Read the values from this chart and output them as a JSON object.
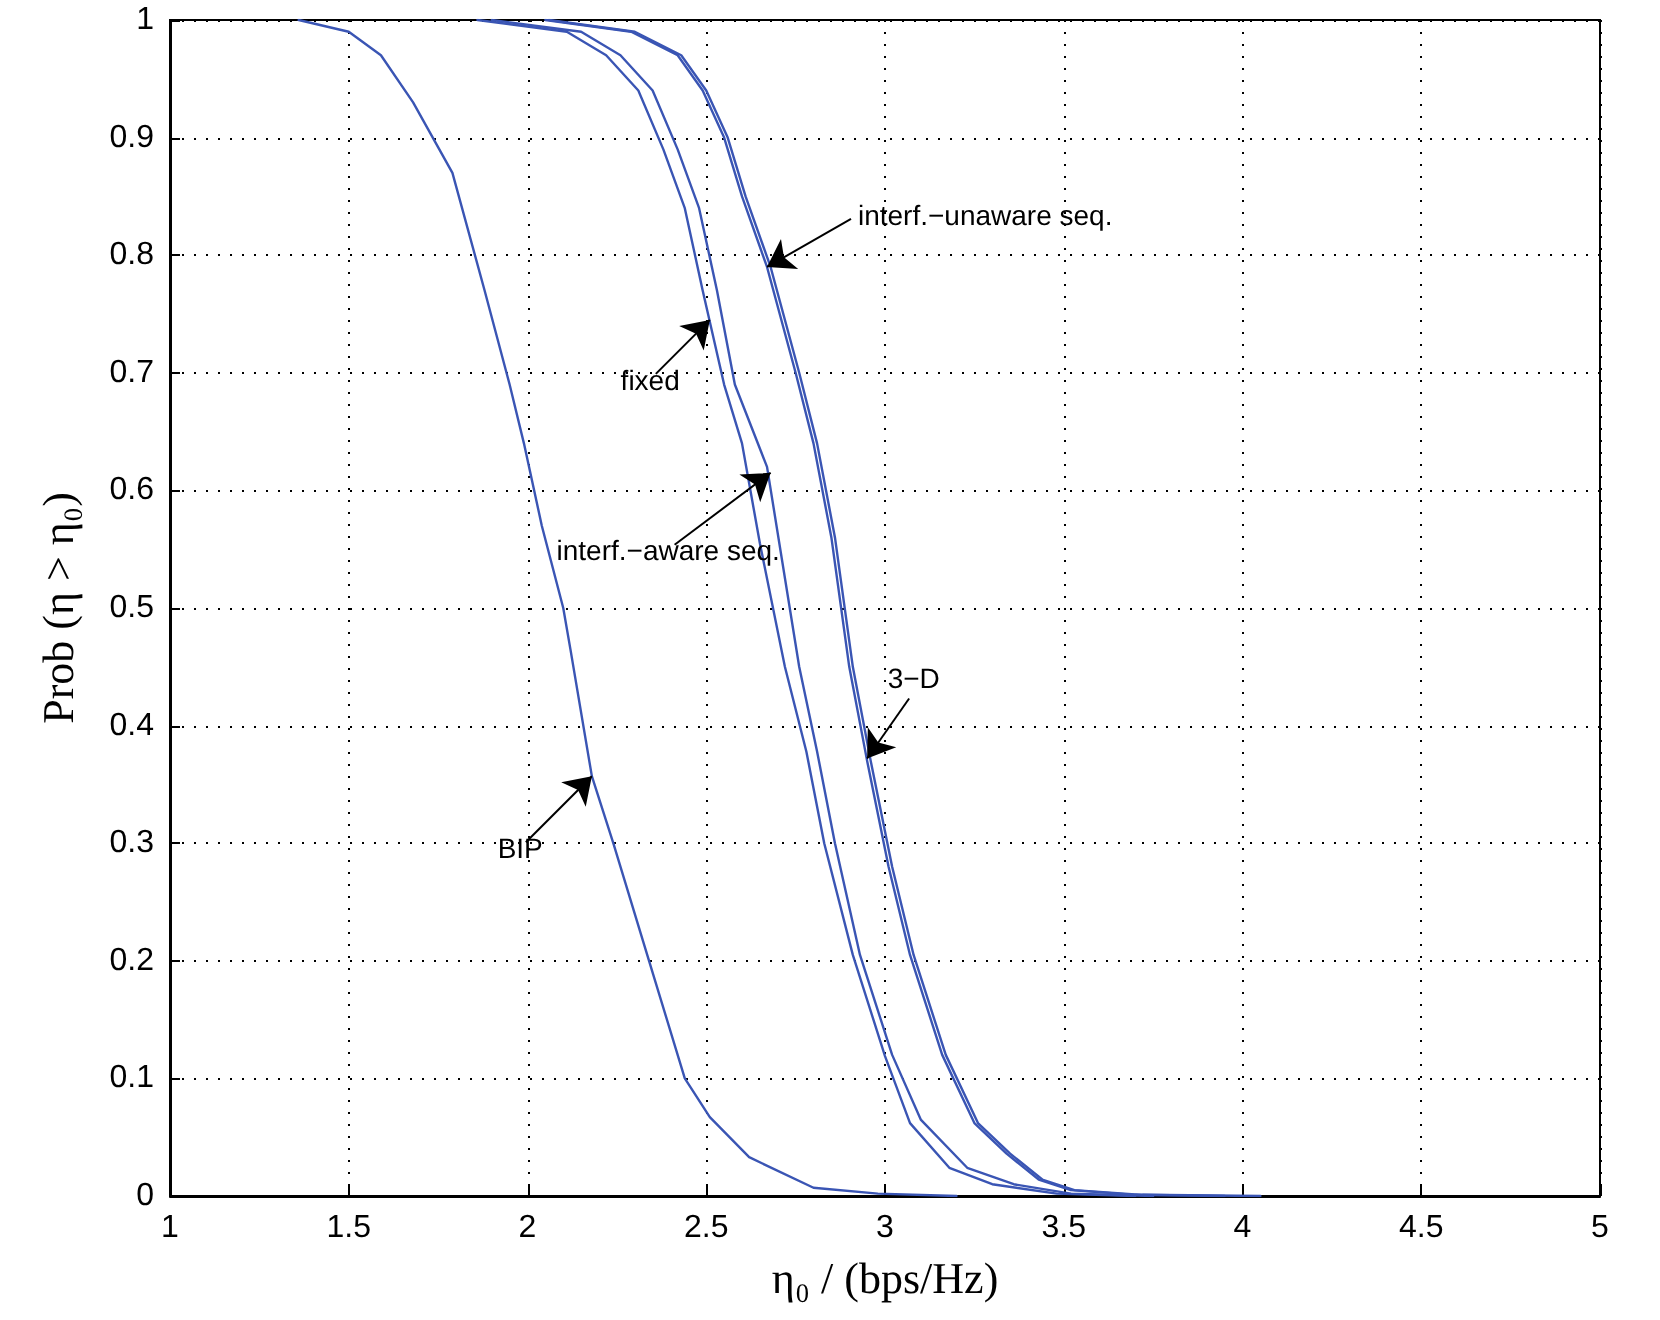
{
  "chart_data": {
    "type": "line",
    "xlabel": "η₀ / (bps/Hz)",
    "ylabel": "Prob (η > η₀)",
    "xlim": [
      1,
      5
    ],
    "xticks": [
      1,
      1.5,
      2,
      2.5,
      3,
      3.5,
      4,
      4.5,
      5
    ],
    "ylim": [
      0,
      1
    ],
    "yticks": [
      0,
      0.1,
      0.2,
      0.3,
      0.4,
      0.5,
      0.6,
      0.7,
      0.8,
      0.9,
      1
    ],
    "grid": true,
    "marker": "none",
    "line_style": "solid",
    "series": [
      {
        "color": "#3a55b4",
        "x": [
          1.36,
          1.5,
          1.59,
          1.68,
          1.79,
          1.88,
          1.95,
          1.99,
          2.04,
          2.1,
          2.12,
          2.18,
          2.24,
          2.34,
          2.44,
          2.51,
          2.62,
          2.8,
          2.98,
          3.2
        ],
        "values": [
          1,
          0.99,
          0.97,
          0.93,
          0.87,
          0.77,
          0.69,
          0.64,
          0.57,
          0.5,
          0.465,
          0.357,
          0.3,
          0.2,
          0.1,
          0.067,
          0.033,
          0.007,
          0.002,
          0
        ]
      },
      {
        "color": "#3a55b4",
        "x": [
          1.86,
          2.11,
          2.22,
          2.31,
          2.38,
          2.44,
          2.49,
          2.55,
          2.6,
          2.65,
          2.72,
          2.78,
          2.83,
          2.91,
          3,
          3.07,
          3.18,
          3.3,
          3.48,
          3.7
        ],
        "values": [
          1,
          0.99,
          0.97,
          0.94,
          0.89,
          0.84,
          0.77,
          0.69,
          0.64,
          0.555,
          0.45,
          0.378,
          0.3,
          0.205,
          0.119,
          0.062,
          0.024,
          0.01,
          0.002,
          0
        ]
      },
      {
        "color": "#3a55b4",
        "x": [
          1.9,
          2.15,
          2.26,
          2.35,
          2.42,
          2.48,
          2.53,
          2.58,
          2.67,
          2.76,
          2.81,
          2.86,
          2.93,
          3.02,
          3.1,
          3.23,
          3.36,
          3.52,
          3.75
        ],
        "values": [
          1,
          0.99,
          0.97,
          0.94,
          0.89,
          0.84,
          0.77,
          0.69,
          0.62,
          0.45,
          0.378,
          0.3,
          0.205,
          0.12,
          0.065,
          0.024,
          0.01,
          0.002,
          0
        ]
      },
      {
        "color": "#3a55b4",
        "x": [
          2.05,
          2.29,
          2.42,
          2.49,
          2.55,
          2.6,
          2.67,
          2.75,
          2.8,
          2.85,
          2.9,
          2.95,
          3.01,
          3.07,
          3.16,
          3.25,
          3.34,
          3.43,
          3.52,
          3.7,
          3.95
        ],
        "values": [
          1,
          0.99,
          0.97,
          0.94,
          0.9,
          0.85,
          0.79,
          0.7,
          0.64,
          0.56,
          0.45,
          0.37,
          0.28,
          0.205,
          0.12,
          0.062,
          0.036,
          0.014,
          0.005,
          0.001,
          0
        ]
      },
      {
        "color": "#3a55b4",
        "x": [
          2.06,
          2.3,
          2.43,
          2.5,
          2.56,
          2.61,
          2.68,
          2.76,
          2.81,
          2.86,
          2.91,
          2.96,
          3.02,
          3.08,
          3.17,
          3.26,
          3.35,
          3.44,
          3.53,
          3.72,
          4.05
        ],
        "values": [
          1,
          0.99,
          0.97,
          0.94,
          0.9,
          0.85,
          0.79,
          0.7,
          0.64,
          0.56,
          0.45,
          0.37,
          0.28,
          0.205,
          0.12,
          0.062,
          0.036,
          0.014,
          0.005,
          0.001,
          0
        ]
      }
    ],
    "annotations": [
      {
        "text": "interf.−unaware seq.",
        "x": 2.67,
        "y": 0.79
      },
      {
        "text": "fixed",
        "x": 2.51,
        "y": 0.745
      },
      {
        "text": "interf.−aware seq.",
        "x": 2.68,
        "y": 0.615
      },
      {
        "text": "3−D",
        "x": 2.95,
        "y": 0.372
      },
      {
        "text": "BIP",
        "x": 2.18,
        "y": 0.357
      }
    ]
  }
}
